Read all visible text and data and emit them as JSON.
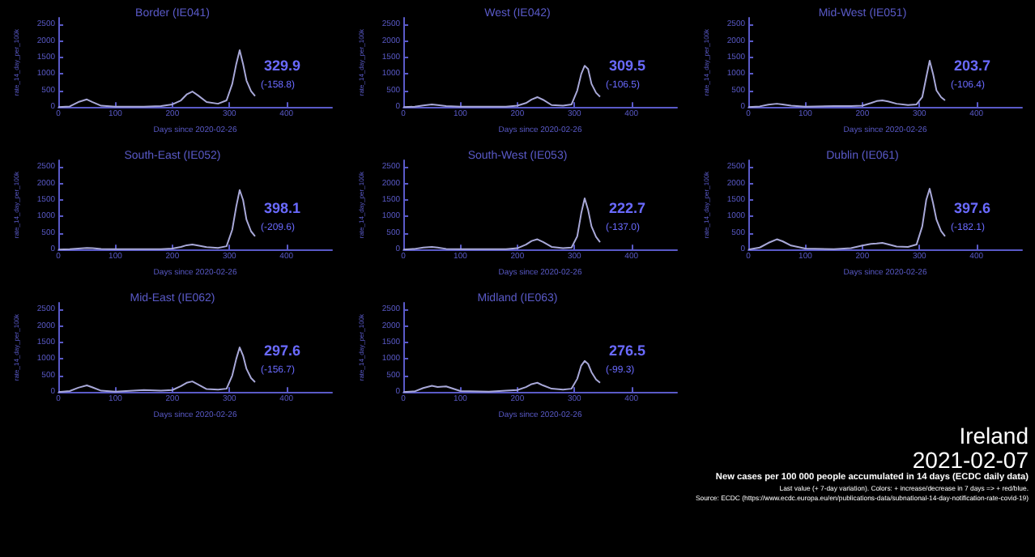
{
  "chart_data": [
    {
      "type": "line",
      "title": "Border (IE041)",
      "xlabel": "Days since 2020-02-26",
      "ylabel": "rate_14_day_per_100k",
      "x": [
        0,
        20,
        35,
        50,
        60,
        75,
        100,
        150,
        180,
        200,
        215,
        225,
        235,
        245,
        260,
        280,
        295,
        305,
        312,
        318,
        324,
        330,
        338,
        345
      ],
      "xlim": [
        0,
        480
      ],
      "ylim": [
        0,
        2700
      ],
      "xticks": [
        0,
        100,
        200,
        300,
        400
      ],
      "yticks": [
        0,
        500,
        1000,
        1500,
        2000,
        2500
      ],
      "series": [
        {
          "color": "#a8a8d8",
          "values": [
            0,
            20,
            150,
            230,
            150,
            40,
            10,
            10,
            30,
            80,
            200,
            380,
            470,
            350,
            150,
            100,
            200,
            700,
            1300,
            1720,
            1300,
            800,
            480,
            330
          ]
        }
      ],
      "annotations": [
        "329.9",
        "(-158.8)"
      ]
    },
    {
      "type": "line",
      "title": "West (IE042)",
      "xlabel": "Days since 2020-02-26",
      "ylabel": "rate_14_day_per_100k",
      "x": [
        0,
        20,
        35,
        50,
        60,
        75,
        100,
        150,
        180,
        200,
        215,
        225,
        235,
        245,
        260,
        280,
        295,
        305,
        312,
        318,
        324,
        330,
        338,
        345
      ],
      "xlim": [
        0,
        480
      ],
      "ylim": [
        0,
        2700
      ],
      "xticks": [
        0,
        100,
        200,
        300,
        400
      ],
      "yticks": [
        0,
        500,
        1000,
        1500,
        2000,
        2500
      ],
      "series": [
        {
          "color": "#a8a8d8",
          "values": [
            0,
            10,
            50,
            80,
            60,
            30,
            10,
            10,
            10,
            40,
            120,
            230,
            300,
            220,
            60,
            40,
            80,
            500,
            1000,
            1250,
            1150,
            700,
            430,
            310
          ]
        }
      ],
      "annotations": [
        "309.5",
        "(-106.5)"
      ]
    },
    {
      "type": "line",
      "title": "Mid-West (IE051)",
      "xlabel": "Days since 2020-02-26",
      "ylabel": "rate_14_day_per_100k",
      "x": [
        0,
        20,
        35,
        50,
        60,
        75,
        100,
        150,
        180,
        200,
        215,
        225,
        235,
        245,
        260,
        280,
        295,
        305,
        312,
        318,
        324,
        330,
        338,
        345
      ],
      "xlim": [
        0,
        480
      ],
      "ylim": [
        0,
        2700
      ],
      "xticks": [
        0,
        100,
        200,
        300,
        400
      ],
      "yticks": [
        0,
        500,
        1000,
        1500,
        2000,
        2500
      ],
      "series": [
        {
          "color": "#a8a8d8",
          "values": [
            0,
            20,
            70,
            100,
            80,
            40,
            10,
            30,
            30,
            40,
            120,
            180,
            200,
            170,
            100,
            60,
            80,
            300,
            900,
            1400,
            1000,
            500,
            300,
            200
          ]
        }
      ],
      "annotations": [
        "203.7",
        "(-106.4)"
      ]
    },
    {
      "type": "line",
      "title": "South-East (IE052)",
      "xlabel": "Days since 2020-02-26",
      "ylabel": "rate_14_day_per_100k",
      "x": [
        0,
        20,
        35,
        50,
        60,
        75,
        100,
        150,
        180,
        200,
        215,
        225,
        235,
        245,
        260,
        280,
        295,
        305,
        312,
        318,
        324,
        330,
        338,
        345
      ],
      "xlim": [
        0,
        480
      ],
      "ylim": [
        0,
        2700
      ],
      "xticks": [
        0,
        100,
        200,
        300,
        400
      ],
      "yticks": [
        0,
        500,
        1000,
        1500,
        2000,
        2500
      ],
      "series": [
        {
          "color": "#a8a8d8",
          "values": [
            0,
            10,
            30,
            50,
            40,
            20,
            10,
            10,
            10,
            30,
            80,
            130,
            150,
            120,
            70,
            50,
            100,
            600,
            1300,
            1800,
            1500,
            900,
            550,
            400
          ]
        }
      ],
      "annotations": [
        "398.1",
        "(-209.6)"
      ]
    },
    {
      "type": "line",
      "title": "South-West (IE053)",
      "xlabel": "Days since 2020-02-26",
      "ylabel": "rate_14_day_per_100k",
      "x": [
        0,
        20,
        35,
        50,
        60,
        75,
        100,
        150,
        180,
        200,
        215,
        225,
        235,
        245,
        260,
        280,
        295,
        305,
        312,
        318,
        324,
        330,
        338,
        345
      ],
      "xlim": [
        0,
        480
      ],
      "ylim": [
        0,
        2700
      ],
      "xticks": [
        0,
        100,
        200,
        300,
        400
      ],
      "yticks": [
        0,
        500,
        1000,
        1500,
        2000,
        2500
      ],
      "series": [
        {
          "color": "#a8a8d8",
          "values": [
            0,
            20,
            60,
            80,
            60,
            20,
            10,
            10,
            10,
            40,
            150,
            260,
            310,
            230,
            80,
            40,
            60,
            400,
            1100,
            1550,
            1200,
            700,
            380,
            220
          ]
        }
      ],
      "annotations": [
        "222.7",
        "(-137.0)"
      ]
    },
    {
      "type": "line",
      "title": "Dublin (IE061)",
      "xlabel": "Days since 2020-02-26",
      "ylabel": "rate_14_day_per_100k",
      "x": [
        0,
        20,
        35,
        50,
        60,
        75,
        100,
        150,
        180,
        200,
        215,
        225,
        235,
        245,
        260,
        280,
        295,
        305,
        312,
        318,
        324,
        330,
        338,
        345
      ],
      "xlim": [
        0,
        480
      ],
      "ylim": [
        0,
        2700
      ],
      "xticks": [
        0,
        100,
        200,
        300,
        400
      ],
      "yticks": [
        0,
        500,
        1000,
        1500,
        2000,
        2500
      ],
      "series": [
        {
          "color": "#a8a8d8",
          "values": [
            0,
            60,
            200,
            310,
            250,
            120,
            30,
            10,
            40,
            120,
            170,
            180,
            200,
            160,
            90,
            80,
            150,
            700,
            1500,
            1840,
            1400,
            900,
            560,
            400
          ]
        }
      ],
      "annotations": [
        "397.6",
        "(-182.1)"
      ]
    },
    {
      "type": "line",
      "title": "Mid-East (IE062)",
      "xlabel": "Days since 2020-02-26",
      "ylabel": "rate_14_day_per_100k",
      "x": [
        0,
        20,
        35,
        50,
        60,
        75,
        100,
        150,
        180,
        200,
        215,
        225,
        235,
        245,
        260,
        280,
        295,
        305,
        312,
        318,
        324,
        330,
        338,
        345
      ],
      "xlim": [
        0,
        480
      ],
      "ylim": [
        0,
        2700
      ],
      "xticks": [
        0,
        100,
        200,
        300,
        400
      ],
      "yticks": [
        0,
        500,
        1000,
        1500,
        2000,
        2500
      ],
      "series": [
        {
          "color": "#a8a8d8",
          "values": [
            0,
            30,
            130,
            200,
            140,
            40,
            10,
            60,
            40,
            60,
            180,
            280,
            320,
            230,
            90,
            70,
            100,
            500,
            1000,
            1350,
            1100,
            700,
            420,
            300
          ]
        }
      ],
      "annotations": [
        "297.6",
        "(-156.7)"
      ]
    },
    {
      "type": "line",
      "title": "Midland (IE063)",
      "xlabel": "Days since 2020-02-26",
      "ylabel": "rate_14_day_per_100k",
      "x": [
        0,
        20,
        35,
        50,
        60,
        75,
        100,
        150,
        180,
        200,
        215,
        225,
        235,
        245,
        260,
        280,
        295,
        305,
        312,
        318,
        324,
        330,
        338,
        345
      ],
      "xlim": [
        0,
        480
      ],
      "ylim": [
        0,
        2700
      ],
      "xticks": [
        0,
        100,
        200,
        300,
        400
      ],
      "yticks": [
        0,
        500,
        1000,
        1500,
        2000,
        2500
      ],
      "series": [
        {
          "color": "#a8a8d8",
          "values": [
            0,
            20,
            120,
            190,
            150,
            170,
            30,
            10,
            40,
            60,
            150,
            240,
            280,
            200,
            100,
            70,
            100,
            400,
            800,
            940,
            850,
            600,
            380,
            280
          ]
        }
      ],
      "annotations": [
        "276.5",
        "(-99.3)"
      ]
    },
    {
      "type": "other",
      "title": "Ireland",
      "subtitle": "2021-02-07",
      "annotations": [
        "New cases per 100 000 people accumulated in 14 days (ECDC daily data)",
        "Last value (+ 7-day variation). Colors: + increase/decrease in 7 days => + red/blue.",
        "Source: ECDC (https://www.ecdc.europa.eu/en/publications-data/subnational-14-day-notification-rate-covid-19)"
      ]
    }
  ]
}
